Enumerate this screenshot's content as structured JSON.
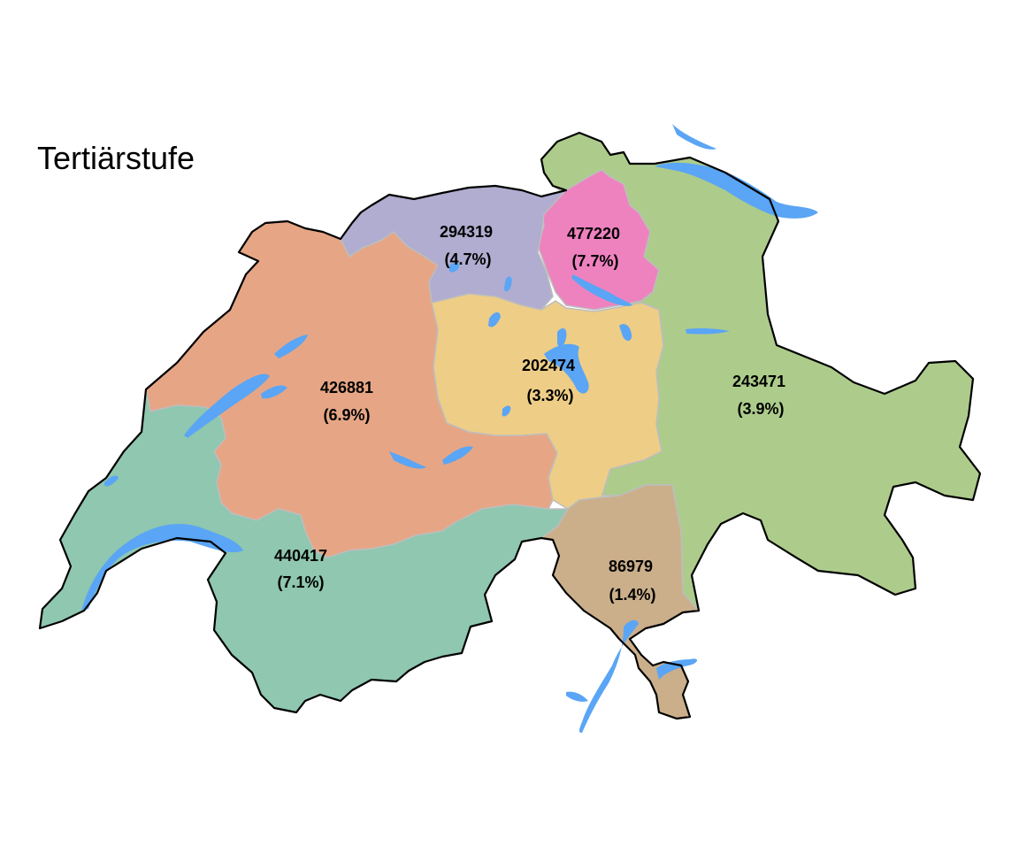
{
  "map": {
    "title": "Tertiärstufe",
    "colors": {
      "lake": "#5aa5f5",
      "border": "#000000",
      "region_outline": "#bdbdbd"
    },
    "regions": [
      {
        "id": "lemanique",
        "value": "440417",
        "percent": "(7.1%)",
        "color": "#8fc7b0"
      },
      {
        "id": "espace-mittelland",
        "value": "426881",
        "percent": "(6.9%)",
        "color": "#e6a685"
      },
      {
        "id": "nordwestschweiz",
        "value": "294319",
        "percent": "(4.7%)",
        "color": "#b0add0"
      },
      {
        "id": "zuerich",
        "value": "477220",
        "percent": "(7.7%)",
        "color": "#ee82bf"
      },
      {
        "id": "zentralschweiz",
        "value": "202474",
        "percent": "(3.3%)",
        "color": "#eecd86"
      },
      {
        "id": "ostschweiz",
        "value": "243471",
        "percent": "(3.9%)",
        "color": "#adcc8c"
      },
      {
        "id": "ticino",
        "value": "86979",
        "percent": "(1.4%)",
        "color": "#cbaf8b"
      }
    ]
  }
}
